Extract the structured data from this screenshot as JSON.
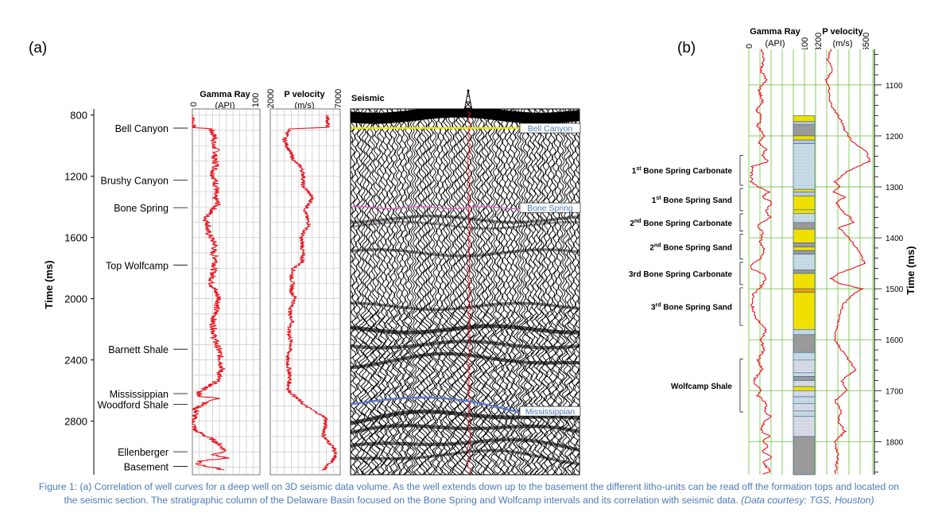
{
  "panel_a": {
    "label": "(a)",
    "gamma_header": {
      "title": "Gamma Ray",
      "unit": "(API)",
      "min": "0",
      "max": "100"
    },
    "velocity_header": {
      "title": "P velocity",
      "unit": "(m/s)",
      "min": "2000",
      "max": "7000"
    },
    "seismic_header": "Seismic",
    "y_axis_label": "Time (ms)",
    "y_ticks": [
      "800",
      "1200",
      "1600",
      "2000",
      "2400",
      "2800"
    ],
    "formations": [
      {
        "name": "Bell Canyon",
        "time": 885
      },
      {
        "name": "Brushy Canyon",
        "time": 1225
      },
      {
        "name": "Bone Spring",
        "time": 1405
      },
      {
        "name": "Top Wolfcamp",
        "time": 1780
      },
      {
        "name": "Barnett Shale",
        "time": 2330
      },
      {
        "name": "Mississippian",
        "time": 2620
      },
      {
        "name": "Woodford Shale",
        "time": 2690
      },
      {
        "name": "Ellenberger",
        "time": 3000
      },
      {
        "name": "Basement",
        "time": 3095
      }
    ],
    "seismic_tags": [
      {
        "text": "Bell Canyon",
        "time": 885
      },
      {
        "text": "Bone Spring",
        "time": 1405
      },
      {
        "text": "Mississippian",
        "time": 2735
      }
    ]
  },
  "panel_b": {
    "label": "(b)",
    "gamma_header": {
      "title": "Gamma Ray",
      "unit": "(API)",
      "min": "0",
      "max": "100"
    },
    "velocity_header": {
      "title": "P velocity",
      "unit": "(m/s)",
      "min": "3200",
      "max": "6500"
    },
    "y_axis_label": "Time (ms)",
    "y_ticks": [
      "1100",
      "1200",
      "1300",
      "1400",
      "1500",
      "1600",
      "1700",
      "1800"
    ],
    "units": [
      {
        "base": "1",
        "sup": "st",
        "rest": " Bone Spring Carbonate",
        "top": 1235,
        "bottom": 1300
      },
      {
        "base": "1",
        "sup": "st",
        "rest": " Bone Spring Sand",
        "top": 1300,
        "bottom": 1350
      },
      {
        "base": "2",
        "sup": "nd",
        "rest": " Bone Spring Carbonate",
        "top": 1350,
        "bottom": 1390
      },
      {
        "base": "2",
        "sup": "nd",
        "rest": " Bone Spring Sand",
        "top": 1390,
        "bottom": 1445
      },
      {
        "base": "",
        "sup": "",
        "rest": "3rd Bone Spring Carbonate",
        "top": 1445,
        "bottom": 1495
      },
      {
        "base": "3",
        "sup": "rd",
        "rest": " Bone Spring Sand",
        "top": 1495,
        "bottom": 1575
      },
      {
        "base": "",
        "sup": "",
        "rest": "Wolfcamp Shale",
        "top": 1635,
        "bottom": 1745
      }
    ],
    "litho_column": [
      {
        "top": 1160,
        "bottom": 1172,
        "color": "#f0e000"
      },
      {
        "top": 1172,
        "bottom": 1178,
        "color": "#b9c8d8"
      },
      {
        "top": 1178,
        "bottom": 1200,
        "color": "#9a9a9a"
      },
      {
        "top": 1200,
        "bottom": 1208,
        "color": "#f0e000"
      },
      {
        "top": 1208,
        "bottom": 1215,
        "color": "#b9c8d8"
      },
      {
        "top": 1215,
        "bottom": 1305,
        "color": "#c8dce6"
      },
      {
        "top": 1305,
        "bottom": 1310,
        "color": "#f0e000"
      },
      {
        "top": 1310,
        "bottom": 1318,
        "color": "#b9c8d8"
      },
      {
        "top": 1318,
        "bottom": 1345,
        "color": "#f0e000"
      },
      {
        "top": 1345,
        "bottom": 1352,
        "color": "#f0e000"
      },
      {
        "top": 1352,
        "bottom": 1370,
        "color": "#c8dce6"
      },
      {
        "top": 1370,
        "bottom": 1383,
        "color": "#9a9a9a"
      },
      {
        "top": 1383,
        "bottom": 1410,
        "color": "#f0e000"
      },
      {
        "top": 1410,
        "bottom": 1418,
        "color": "#9a9a9a"
      },
      {
        "top": 1418,
        "bottom": 1425,
        "color": "#f0e000"
      },
      {
        "top": 1425,
        "bottom": 1432,
        "color": "#9a9a9a"
      },
      {
        "top": 1432,
        "bottom": 1463,
        "color": "#c8dce6"
      },
      {
        "top": 1463,
        "bottom": 1470,
        "color": "#9a9a9a"
      },
      {
        "top": 1470,
        "bottom": 1500,
        "color": "#f0e000"
      },
      {
        "top": 1500,
        "bottom": 1507,
        "color": "#f0a000"
      },
      {
        "top": 1507,
        "bottom": 1580,
        "color": "#f0e000"
      },
      {
        "top": 1580,
        "bottom": 1590,
        "color": "#c8dce6"
      },
      {
        "top": 1590,
        "bottom": 1625,
        "color": "#9a9a9a"
      },
      {
        "top": 1625,
        "bottom": 1640,
        "color": "#c8dce6"
      },
      {
        "top": 1640,
        "bottom": 1665,
        "color": "#d8dbe6"
      },
      {
        "top": 1665,
        "bottom": 1672,
        "color": "#c8dce6"
      },
      {
        "top": 1672,
        "bottom": 1680,
        "color": "#9a9a9a"
      },
      {
        "top": 1680,
        "bottom": 1692,
        "color": "#d8dbe6"
      },
      {
        "top": 1692,
        "bottom": 1700,
        "color": "#f0e000"
      },
      {
        "top": 1700,
        "bottom": 1712,
        "color": "#d8dbe6"
      },
      {
        "top": 1712,
        "bottom": 1725,
        "color": "#c8dce6"
      },
      {
        "top": 1725,
        "bottom": 1740,
        "color": "#d8dbe6"
      },
      {
        "top": 1740,
        "bottom": 1750,
        "color": "#c8dce6"
      },
      {
        "top": 1750,
        "bottom": 1790,
        "color": "#d8dbe6"
      },
      {
        "top": 1790,
        "bottom": 1865,
        "color": "#9a9a9a"
      }
    ]
  },
  "caption": {
    "main": "Figure 1: (a) Correlation of well curves for a deep well on 3D seismic data volume. As the well extends down up to the basement  the different litho-units can be read off the formation tops and located on the seismic section. The stratigraphic column of the Delaware Basin focused on the Bone Spring and Wolfcamp intervals and its correlation with seismic data.",
    "credit": "(Data courtesy: TGS, Houston)"
  },
  "colors": {
    "log_curve": "#e8141e",
    "grid_b": "#78c850",
    "tag_text": "#4a7bb7",
    "bell_canyon_horizon": "#e8e800",
    "bone_spring_horizon": "#e060c0",
    "mississippian_horizon": "#5a78c8"
  },
  "chart_data": [
    {
      "type": "line",
      "title": "",
      "xlabel": "Gamma Ray (API)",
      "ylabel": "Time (ms)",
      "xlim": [
        0,
        100
      ],
      "ylim": [
        3150,
        760
      ],
      "series": [
        {
          "name": "Gamma Ray",
          "x": [
            0,
            0,
            28,
            30,
            34,
            30,
            36,
            32,
            36,
            30,
            34,
            36,
            32,
            38,
            30,
            26,
            22,
            20,
            24,
            22,
            28,
            34,
            30,
            36,
            32,
            30,
            28,
            34,
            40,
            36,
            34,
            30,
            32,
            32,
            36,
            40,
            44,
            36,
            10,
            12,
            40,
            20,
            4,
            6,
            0,
            4,
            30,
            42,
            50,
            30,
            52,
            12,
            6,
            48
          ],
          "y": [
            800,
            880,
            890,
            920,
            950,
            990,
            1030,
            1080,
            1130,
            1180,
            1230,
            1280,
            1330,
            1380,
            1420,
            1440,
            1460,
            1480,
            1520,
            1560,
            1600,
            1650,
            1700,
            1750,
            1800,
            1850,
            1900,
            1950,
            2000,
            2050,
            2100,
            2150,
            2200,
            2250,
            2300,
            2350,
            2450,
            2540,
            2610,
            2640,
            2650,
            2680,
            2720,
            2740,
            2800,
            2860,
            2920,
            2960,
            3000,
            3020,
            3040,
            3060,
            3080,
            3120
          ]
        }
      ]
    },
    {
      "type": "line",
      "title": "",
      "xlabel": "P velocity (m/s)",
      "ylabel": "Time (ms)",
      "xlim": [
        2000,
        7000
      ],
      "ylim": [
        3150,
        760
      ],
      "series": [
        {
          "name": "P velocity",
          "x": [
            6100,
            6100,
            3400,
            3000,
            3200,
            3500,
            3700,
            4200,
            4400,
            4300,
            4700,
            5000,
            4800,
            4500,
            4600,
            4800,
            4400,
            4200,
            4300,
            4300,
            4300,
            4300,
            3700,
            3500,
            3600,
            3500,
            3800,
            3500,
            3400,
            3600,
            3300,
            3500,
            3200,
            3400,
            3300,
            4500,
            6000,
            5800,
            6600,
            6600,
            5800
          ],
          "y": [
            800,
            880,
            890,
            960,
            1000,
            1060,
            1100,
            1140,
            1200,
            1260,
            1300,
            1340,
            1380,
            1420,
            1470,
            1520,
            1560,
            1600,
            1650,
            1700,
            1720,
            1760,
            1800,
            1860,
            1900,
            1950,
            2000,
            2050,
            2100,
            2150,
            2200,
            2300,
            2400,
            2500,
            2600,
            2700,
            2780,
            2900,
            2980,
            3040,
            3120
          ]
        }
      ]
    },
    {
      "type": "line",
      "title": "",
      "xlabel": "Gamma Ray (API)",
      "ylabel": "Time (ms)",
      "xlim": [
        0,
        100
      ],
      "ylim": [
        1865,
        1030
      ],
      "series": [
        {
          "name": "Gamma Ray",
          "x": [
            28,
            35,
            26,
            40,
            22,
            32,
            18,
            30,
            20,
            34,
            22,
            40,
            30,
            45,
            8,
            6,
            20,
            45,
            30,
            52,
            40,
            48,
            20,
            30,
            26,
            35,
            28,
            8,
            4,
            30,
            38,
            24,
            10,
            6,
            18,
            40,
            28,
            34,
            20,
            30,
            10,
            26,
            20,
            40,
            34,
            48,
            36,
            30,
            28,
            48,
            30,
            44,
            30,
            50,
            34,
            40,
            50,
            30
          ],
          "y": [
            1030,
            1050,
            1070,
            1090,
            1110,
            1130,
            1150,
            1165,
            1180,
            1200,
            1215,
            1225,
            1240,
            1250,
            1260,
            1290,
            1300,
            1310,
            1320,
            1330,
            1345,
            1360,
            1375,
            1390,
            1410,
            1420,
            1440,
            1450,
            1460,
            1470,
            1480,
            1500,
            1510,
            1530,
            1560,
            1580,
            1600,
            1620,
            1640,
            1660,
            1680,
            1700,
            1710,
            1725,
            1740,
            1750,
            1760,
            1770,
            1780,
            1790,
            1800,
            1810,
            1820,
            1830,
            1840,
            1850,
            1858,
            1865
          ]
        }
      ]
    },
    {
      "type": "line",
      "title": "",
      "xlabel": "P velocity (m/s)",
      "ylabel": "Time (ms)",
      "xlim": [
        3200,
        6500
      ],
      "ylim": [
        1865,
        1030
      ],
      "series": [
        {
          "name": "P velocity",
          "x": [
            4100,
            3900,
            4200,
            3800,
            4000,
            3950,
            4300,
            4700,
            4900,
            5300,
            6100,
            6300,
            5000,
            4300,
            4600,
            4200,
            4900,
            4400,
            4800,
            5200,
            5400,
            4500,
            5100,
            5800,
            6000,
            5300,
            4500,
            4100,
            4600,
            5900,
            5400,
            4800,
            4600,
            4400,
            4300,
            4700,
            5100,
            5500,
            4700,
            5000,
            4300,
            4700,
            4500,
            4900,
            4300,
            4500,
            4300
          ],
          "y": [
            1030,
            1050,
            1070,
            1090,
            1110,
            1130,
            1150,
            1170,
            1190,
            1210,
            1230,
            1250,
            1270,
            1290,
            1300,
            1310,
            1320,
            1330,
            1350,
            1360,
            1370,
            1380,
            1400,
            1430,
            1450,
            1460,
            1470,
            1480,
            1490,
            1500,
            1510,
            1530,
            1550,
            1580,
            1600,
            1620,
            1640,
            1660,
            1680,
            1700,
            1720,
            1740,
            1760,
            1780,
            1800,
            1830,
            1865
          ]
        }
      ]
    }
  ]
}
